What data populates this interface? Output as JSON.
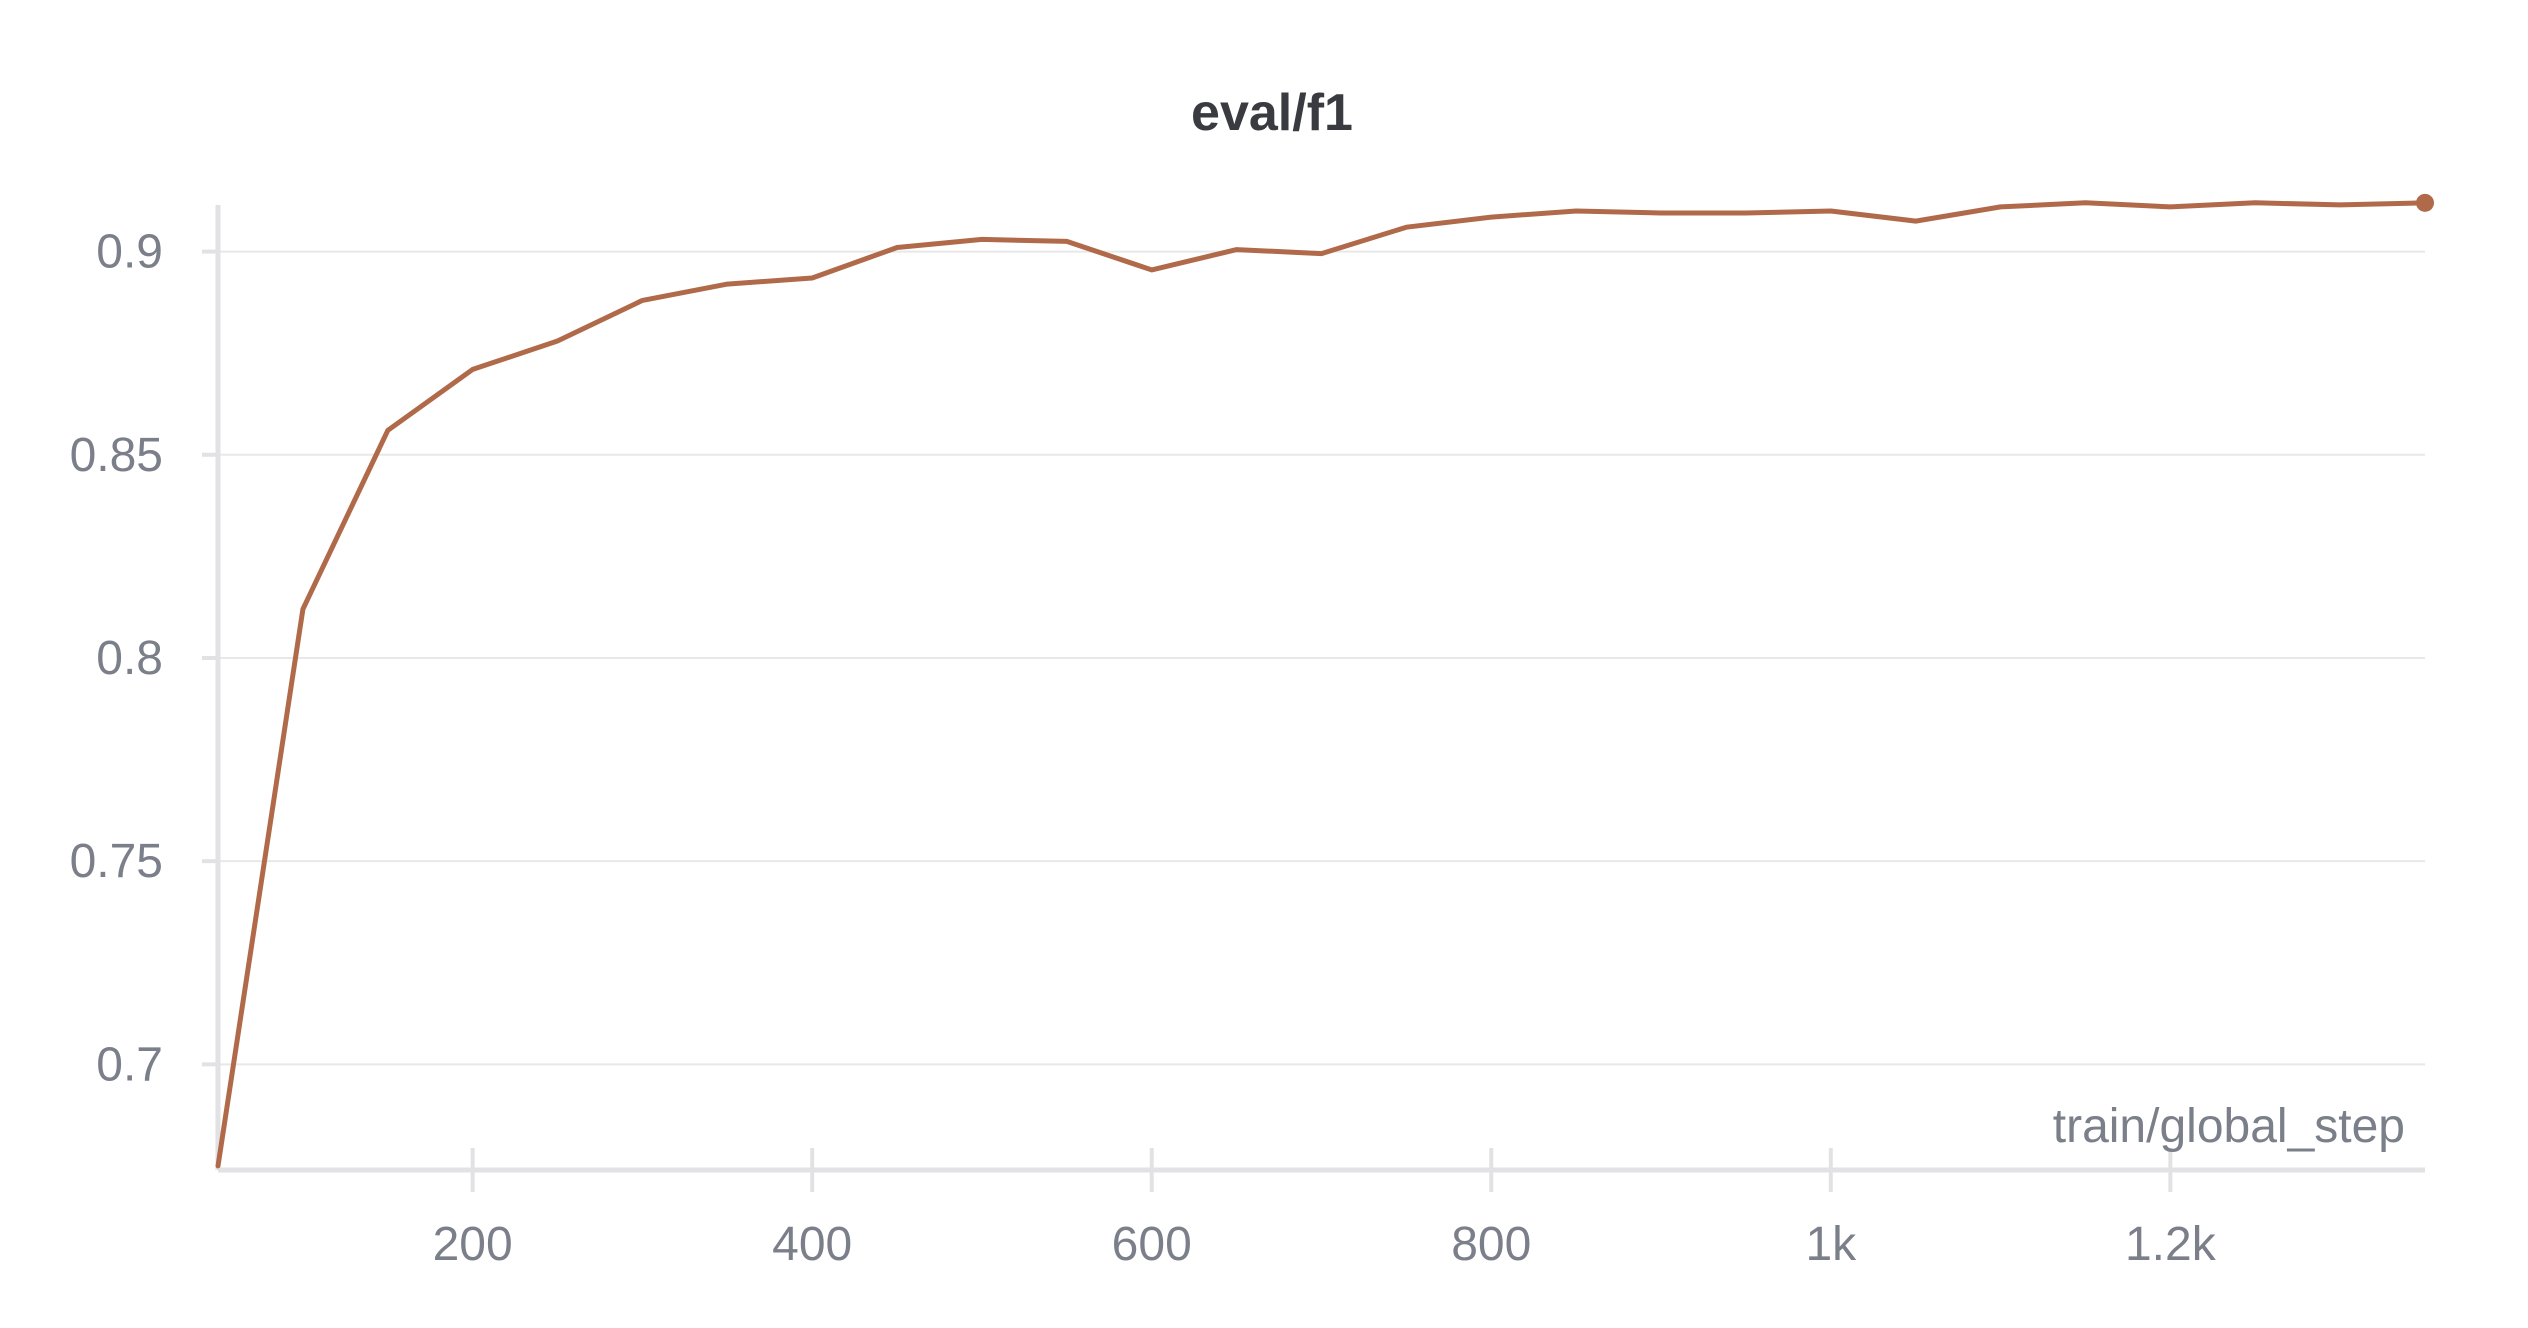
{
  "chart_data": {
    "type": "line",
    "title": "eval/f1",
    "xlabel": "train/global_step",
    "ylabel": "",
    "xlim": [
      50,
      1350
    ],
    "ylim": [
      0.674,
      0.925
    ],
    "grid": true,
    "x_ticks": [
      {
        "value": 200,
        "label": "200"
      },
      {
        "value": 400,
        "label": "400"
      },
      {
        "value": 600,
        "label": "600"
      },
      {
        "value": 800,
        "label": "800"
      },
      {
        "value": 1000,
        "label": "1k"
      },
      {
        "value": 1200,
        "label": "1.2k"
      }
    ],
    "y_ticks": [
      {
        "value": 0.7,
        "label": "0.7"
      },
      {
        "value": 0.75,
        "label": "0.75"
      },
      {
        "value": 0.8,
        "label": "0.8"
      },
      {
        "value": 0.85,
        "label": "0.85"
      },
      {
        "value": 0.9,
        "label": "0.9"
      }
    ],
    "series": [
      {
        "color": "#b06a4a",
        "x": [
          50,
          100,
          150,
          200,
          250,
          300,
          350,
          400,
          450,
          500,
          550,
          600,
          650,
          700,
          750,
          800,
          850,
          900,
          950,
          1000,
          1050,
          1100,
          1150,
          1200,
          1250,
          1300,
          1350
        ],
        "y": [
          0.675,
          0.812,
          0.856,
          0.871,
          0.878,
          0.888,
          0.892,
          0.8935,
          0.901,
          0.903,
          0.9025,
          0.8955,
          0.9005,
          0.8995,
          0.906,
          0.9085,
          0.91,
          0.9095,
          0.9095,
          0.91,
          0.9075,
          0.911,
          0.912,
          0.911,
          0.912,
          0.9115,
          0.912
        ]
      }
    ]
  }
}
